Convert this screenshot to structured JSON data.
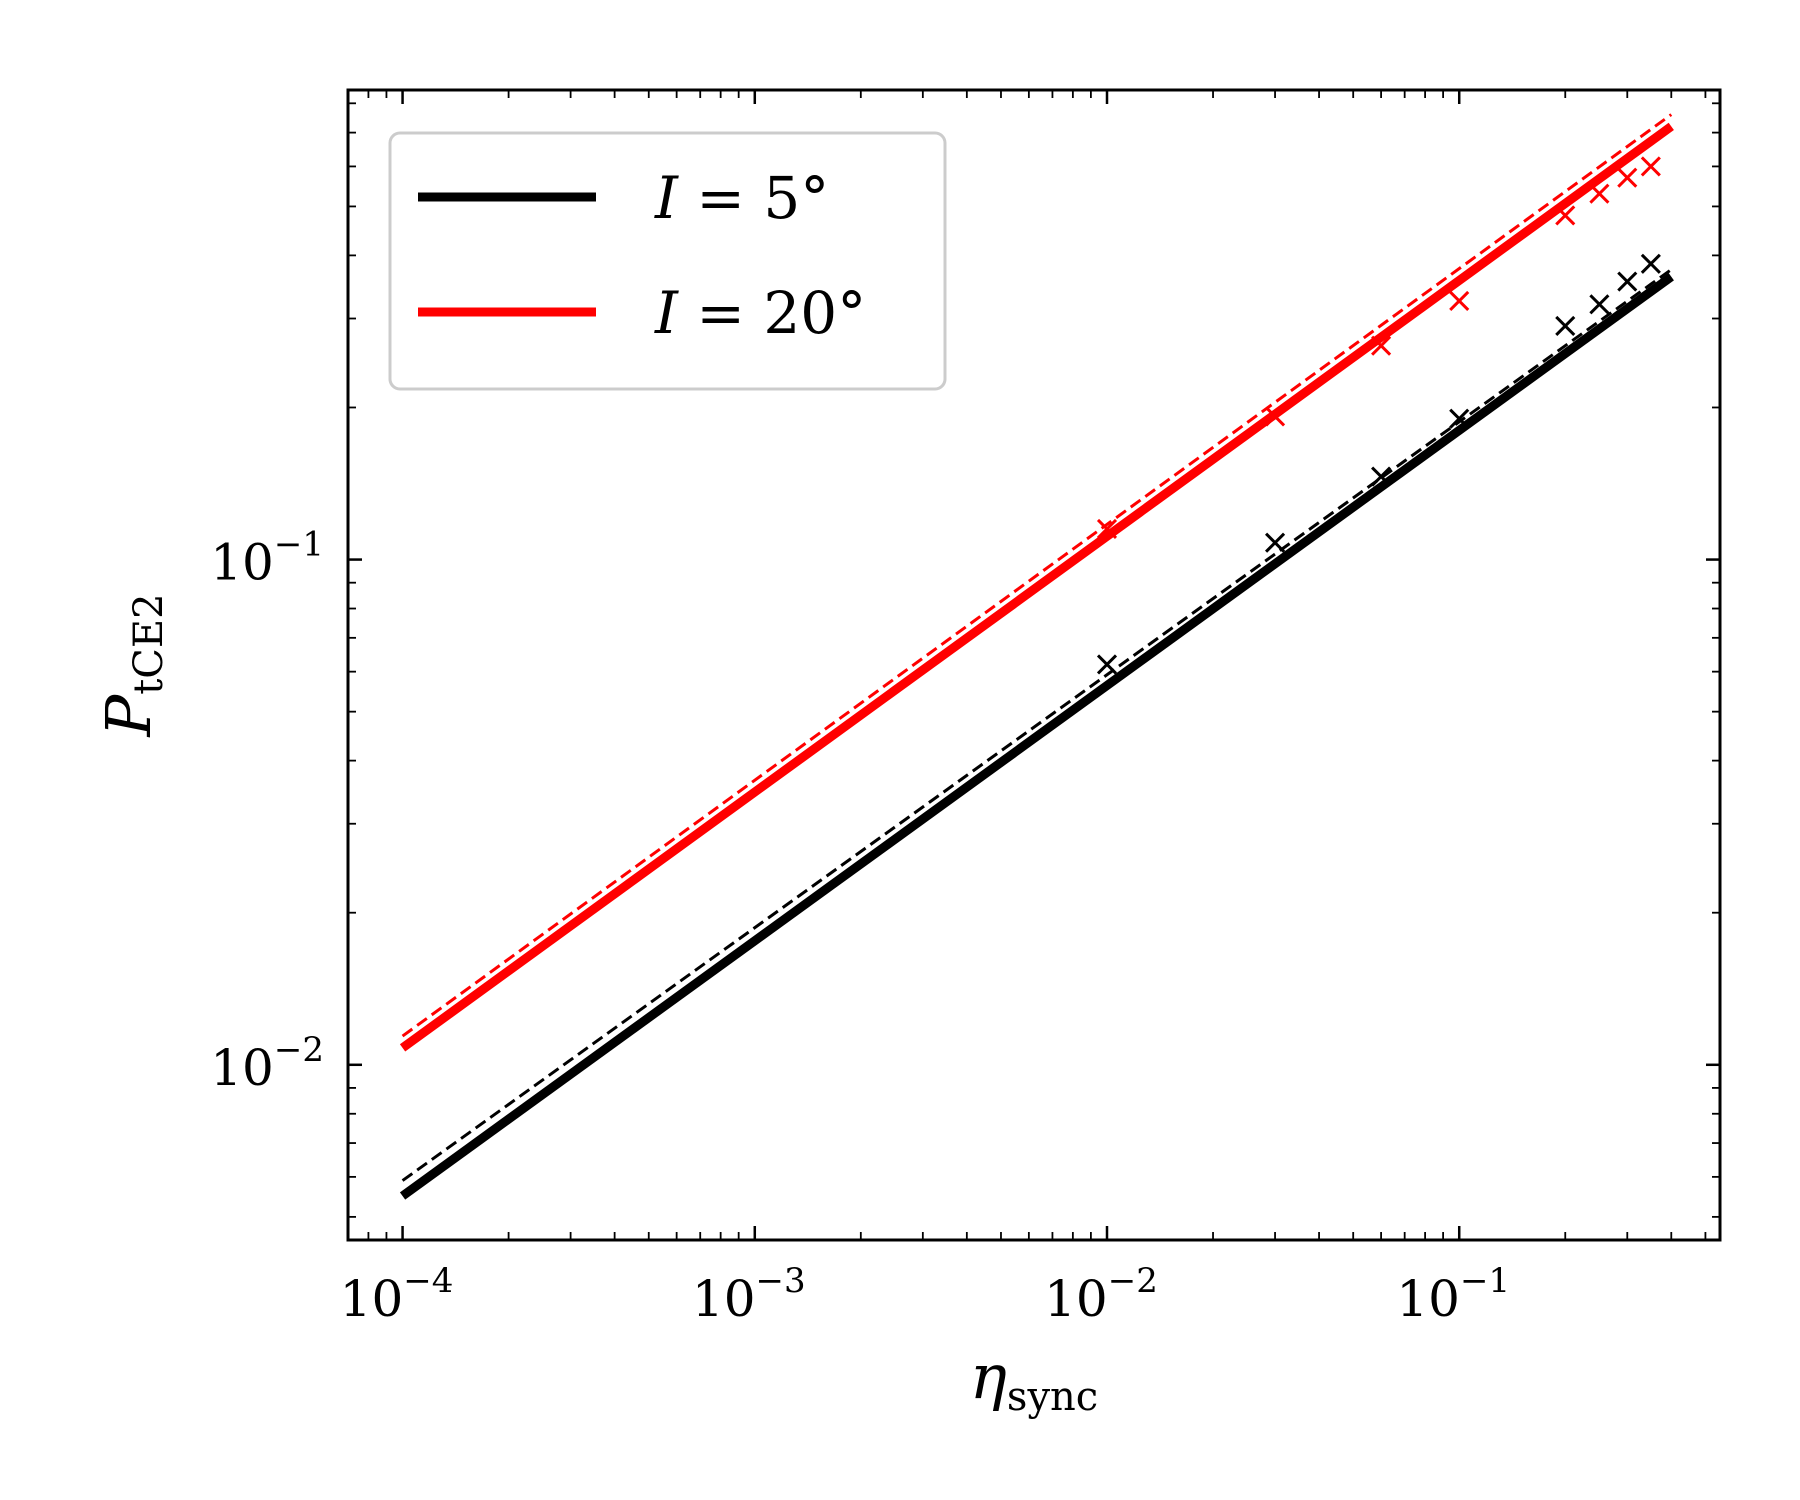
{
  "chart_data": {
    "type": "line",
    "title": "",
    "xlabel": {
      "main": "η",
      "sub": "sync"
    },
    "ylabel": {
      "main": "P",
      "sub": "tCE2"
    },
    "xscale": "log",
    "yscale": "log",
    "xlim": [
      7e-05,
      0.55
    ],
    "ylim": [
      0.0045,
      0.85
    ],
    "grid": false,
    "legend": "top-left",
    "x_ticks": [
      {
        "value": 0.0001,
        "base": "10",
        "exp": "−4"
      },
      {
        "value": 0.001,
        "base": "10",
        "exp": "−3"
      },
      {
        "value": 0.01,
        "base": "10",
        "exp": "−2"
      },
      {
        "value": 0.1,
        "base": "10",
        "exp": "−1"
      }
    ],
    "y_ticks": [
      {
        "value": 0.01,
        "base": "10",
        "exp": "−2"
      },
      {
        "value": 0.1,
        "base": "10",
        "exp": "−1"
      }
    ],
    "series": [
      {
        "name": "I = 5°",
        "name_prefix": "I",
        "name_rest": " = 5°",
        "color": "#000000",
        "solid": {
          "x": [
            0.0001,
            0.4
          ],
          "y": [
            0.0055,
            0.363
          ]
        },
        "dashed": {
          "x": [
            0.0001,
            0.4
          ],
          "y": [
            0.0059,
            0.375
          ]
        },
        "markers": {
          "x": [
            0.01,
            0.03,
            0.06,
            0.1,
            0.2,
            0.25,
            0.3,
            0.35
          ],
          "y": [
            0.062,
            0.108,
            0.146,
            0.19,
            0.29,
            0.32,
            0.355,
            0.385
          ]
        }
      },
      {
        "name": "I = 20°",
        "name_prefix": "I",
        "name_rest": " = 20°",
        "color": "#ff0000",
        "solid": {
          "x": [
            0.0001,
            0.4
          ],
          "y": [
            0.0108,
            0.72
          ]
        },
        "dashed": {
          "x": [
            0.0001,
            0.4
          ],
          "y": [
            0.0114,
            0.76
          ]
        },
        "markers": {
          "x": [
            0.01,
            0.03,
            0.06,
            0.1,
            0.2,
            0.25,
            0.3,
            0.35
          ],
          "y": [
            0.115,
            0.192,
            0.265,
            0.325,
            0.48,
            0.53,
            0.57,
            0.6
          ]
        }
      }
    ]
  }
}
